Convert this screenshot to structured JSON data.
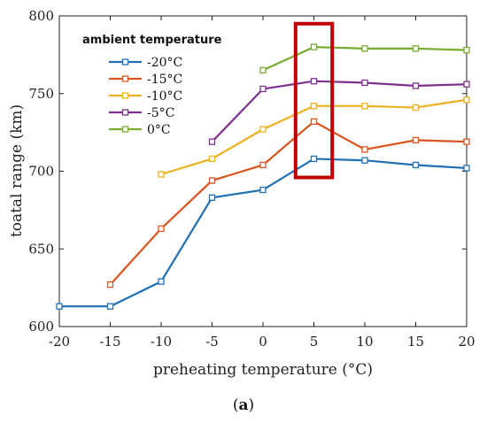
{
  "chart_data": {
    "type": "line",
    "xlabel": "preheating temperature (°C)",
    "ylabel": "toatal range (km)",
    "xlim": [
      -20,
      20
    ],
    "ylim": [
      600,
      800
    ],
    "xticks": [
      -20,
      -15,
      -10,
      -5,
      0,
      5,
      10,
      15,
      20
    ],
    "yticks": [
      600,
      650,
      700,
      750,
      800
    ],
    "legend_title": "ambient temperature",
    "legend_position": "top-left",
    "grid": false,
    "series": [
      {
        "name": "-20°C",
        "color": "#1f6fb5",
        "x": [
          -20,
          -15,
          -10,
          -5,
          0,
          5,
          10,
          15,
          20
        ],
        "y": [
          613,
          613,
          629,
          683,
          688,
          708,
          707,
          704,
          702
        ]
      },
      {
        "name": "-15°C",
        "color": "#d9541e",
        "x": [
          -15,
          -10,
          -5,
          0,
          5,
          10,
          15,
          20
        ],
        "y": [
          627,
          663,
          694,
          704,
          732,
          714,
          720,
          719
        ]
      },
      {
        "name": "-10°C",
        "color": "#edb120",
        "x": [
          -10,
          -5,
          0,
          5,
          10,
          15,
          20
        ],
        "y": [
          698,
          708,
          727,
          742,
          742,
          741,
          746
        ]
      },
      {
        "name": "-5°C",
        "color": "#7e2f8e",
        "x": [
          -5,
          0,
          5,
          10,
          15,
          20
        ],
        "y": [
          719,
          753,
          758,
          757,
          755,
          756
        ]
      },
      {
        "name": "0°C",
        "color": "#77ac30",
        "x": [
          0,
          5,
          10,
          15,
          20
        ],
        "y": [
          765,
          780,
          779,
          779,
          778
        ]
      }
    ],
    "highlight": {
      "x_range": [
        3.2,
        6.8
      ],
      "y_range": [
        696,
        795
      ],
      "color": "#c00000"
    }
  },
  "caption": {
    "label": "a"
  }
}
